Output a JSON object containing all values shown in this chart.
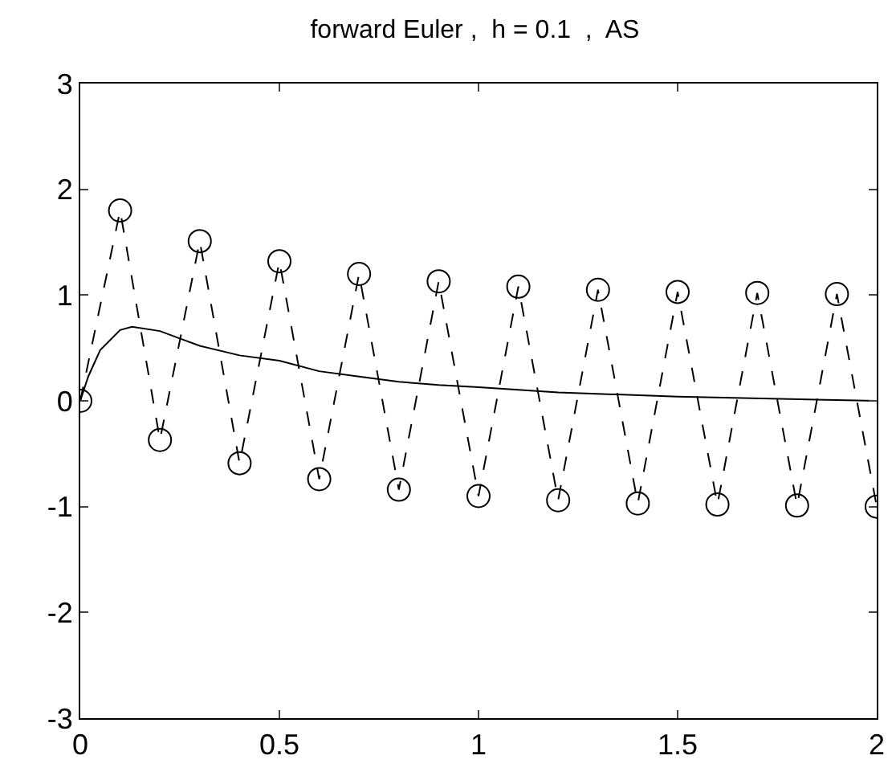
{
  "chart_data": {
    "type": "line",
    "title": "forward Euler ,  h = 0.1  ,  AS",
    "series": [
      {
        "color": "#000000",
        "marker": "circle",
        "line_style": "dashed",
        "x": [
          0,
          0.1,
          0.2,
          0.3,
          0.4,
          0.5,
          0.6,
          0.7,
          0.8,
          0.9,
          1.0,
          1.1,
          1.2,
          1.3,
          1.4,
          1.5,
          1.6,
          1.7,
          1.8,
          1.9,
          2.0
        ],
        "values": [
          0,
          1.8,
          -0.37,
          1.51,
          -0.59,
          1.32,
          -0.74,
          1.2,
          -0.84,
          1.13,
          -0.9,
          1.08,
          -0.94,
          1.05,
          -0.97,
          1.03,
          -0.98,
          1.02,
          -0.99,
          1.01,
          -1.0
        ]
      },
      {
        "color": "#000000",
        "marker": "none",
        "line_style": "solid",
        "x": [
          0,
          0.02,
          0.05,
          0.1,
          0.13,
          0.2,
          0.25,
          0.3,
          0.4,
          0.5,
          0.6,
          0.7,
          0.8,
          0.9,
          1.0,
          1.2,
          1.5,
          2.0
        ],
        "values": [
          0,
          0.23,
          0.48,
          0.67,
          0.7,
          0.66,
          0.59,
          0.52,
          0.43,
          0.38,
          0.28,
          0.23,
          0.18,
          0.15,
          0.13,
          0.08,
          0.04,
          0.0
        ]
      }
    ],
    "xlim": [
      0,
      2
    ],
    "xticks": [
      0,
      0.5,
      1,
      1.5,
      2
    ],
    "ylim": [
      -3,
      3
    ],
    "yticks": [
      -3,
      -2,
      -1,
      0,
      1,
      2,
      3
    ]
  }
}
